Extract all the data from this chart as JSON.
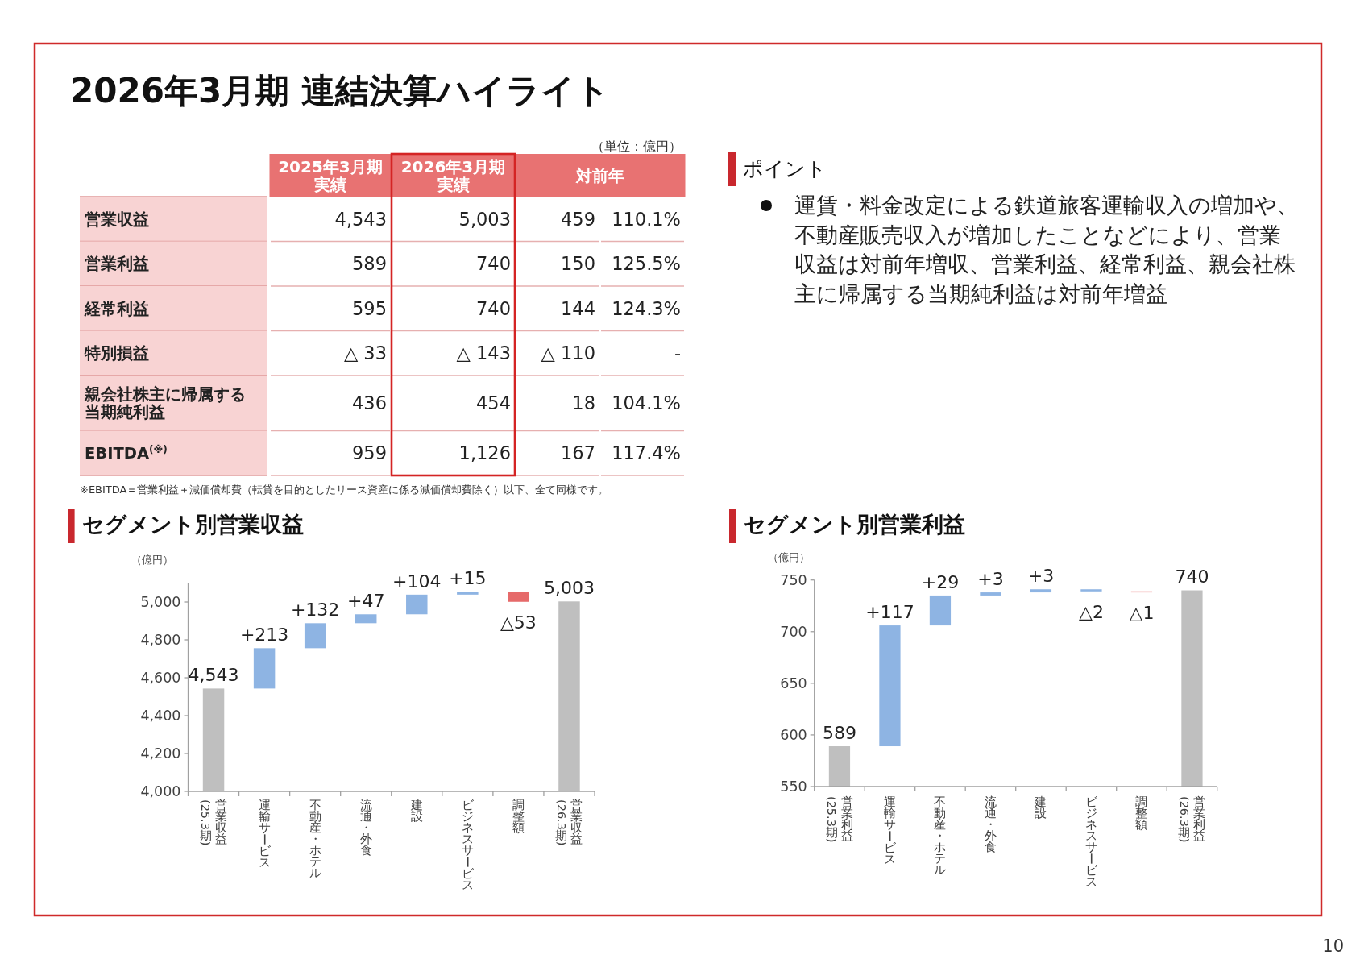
{
  "chart_data": [
    {
      "type": "other",
      "title": "2026年3月期 連結決算ハイライト",
      "categories": [
        "2025年3月期実績",
        "2026年3月期実績",
        "対前年",
        null
      ],
      "y_categories": [
        "営業収益",
        "営業利益",
        "経常利益",
        "特別損益",
        "親会社株主に帰属する当期純利益",
        "EBITDA$^{(※)}$"
      ],
      "cell_labels": [
        [
          "4,543",
          "5,003",
          "459",
          "110.1%"
        ],
        [
          "589",
          "740",
          "150",
          "125.5%"
        ],
        [
          "595",
          "740",
          "144",
          "124.3%"
        ],
        [
          "△ 33",
          "△ 143",
          "△ 110",
          "-"
        ],
        [
          "436",
          "454",
          "18",
          "104.1%"
        ],
        [
          "959",
          "1,126",
          "167",
          "117.4%"
        ]
      ],
      "annotations": [
        "（単位：億円）",
        "※EBITDA＝営業利益＋減価償却費（転貸を目的としたリース資産に係る減価償却費除く）以下、全て同様です。",
        "10"
      ]
    },
    {
      "type": "other",
      "title": "ポイント",
      "annotations": [
        "運賃・料金改定による鉄道旅客運輸収入の増加や、不動産販売収入が増加したことなどにより、営業収益は対前年増収、営業利益、経常利益、親会社株主に帰属する当期純利益は対前年増益"
      ]
    },
    {
      "type": "bar",
      "title": "セグメント別営業収益",
      "ylabel": "（億円）",
      "categories": [
        "営業収益(25.3期)",
        "運輸サービス",
        "不動産・ホテル",
        "流通・外食",
        "建設",
        "ビジネスサービス",
        "調整額",
        "営業収益(26.3期)"
      ],
      "values": [
        4543,
        213,
        132,
        47,
        104,
        15,
        -53,
        5003
      ],
      "base": [
        null,
        4543,
        4756,
        4888,
        4935,
        5039,
        5054,
        null
      ],
      "colors": [
        "#bfbfbf",
        "#8eb4e3",
        "#8eb4e3",
        "#8eb4e3",
        "#8eb4e3",
        "#8eb4e3",
        "#e66a6a",
        "#bfbfbf"
      ],
      "value_labels": [
        "4,543",
        "+213",
        "+132",
        "+47",
        "+104",
        "+15",
        "△53",
        "5,003"
      ],
      "ylim": [
        4000,
        5100
      ],
      "yticks": [
        {
          "value": 4000,
          "label": "4,000"
        },
        {
          "value": 4200,
          "label": "4,200"
        },
        {
          "value": 4400,
          "label": "4,400"
        },
        {
          "value": 4600,
          "label": "4,600"
        },
        {
          "value": 4800,
          "label": "4,800"
        },
        {
          "value": 5000,
          "label": "5,000"
        }
      ]
    },
    {
      "type": "bar",
      "title": "セグメント別営業利益",
      "ylabel": "（億円）",
      "categories": [
        "営業利益(25.3期)",
        "運輸サービス",
        "不動産・ホテル",
        "流通・外食",
        "建設",
        "ビジネスサービス",
        "調整額",
        "営業利益(26.3期)"
      ],
      "values": [
        589,
        117,
        29,
        3,
        3,
        -2,
        -1,
        740
      ],
      "base": [
        null,
        589,
        706,
        735,
        738,
        741,
        739,
        null
      ],
      "colors": [
        "#bfbfbf",
        "#8eb4e3",
        "#8eb4e3",
        "#8eb4e3",
        "#8eb4e3",
        "#8eb4e3",
        "#e66a6a",
        "#bfbfbf"
      ],
      "value_labels": [
        "589",
        "+117",
        "+29",
        "+3",
        "+3",
        "△2",
        "△1",
        "740"
      ],
      "ylim": [
        550,
        750
      ],
      "yticks": [
        550,
        600,
        650,
        700,
        750
      ]
    }
  ]
}
